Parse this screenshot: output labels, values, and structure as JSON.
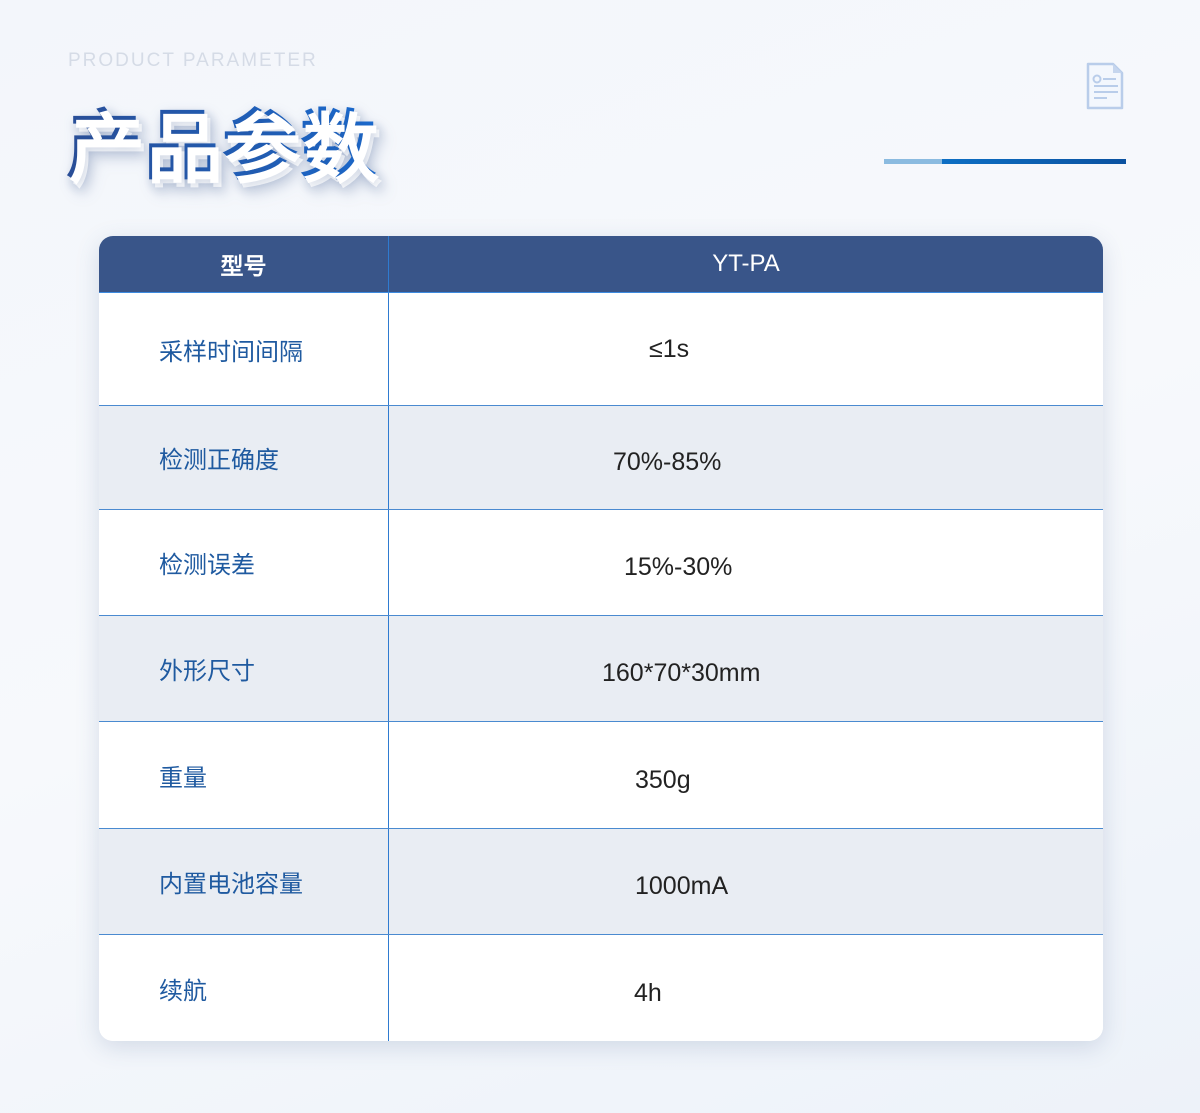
{
  "header": {
    "subtitle": "PRODUCT PARAMETER",
    "title": "产品参数",
    "icon": "document-icon"
  },
  "colors": {
    "header_bg": "#395589",
    "label": "#1f5aa0",
    "accent": "#0b59ae"
  },
  "table": {
    "head": {
      "label": "型号",
      "value": "YT-PA"
    },
    "rows": [
      {
        "label": "采样时间间隔",
        "value": "≤1s"
      },
      {
        "label": "检测正确度",
        "value": "70%-85%"
      },
      {
        "label": "检测误差",
        "value": "15%-30%"
      },
      {
        "label": "外形尺寸",
        "value": "160*70*30mm"
      },
      {
        "label": "重量",
        "value": "350g"
      },
      {
        "label": "内置电池容量",
        "value": "1000mA"
      },
      {
        "label": "续航",
        "value": "4h"
      }
    ]
  }
}
